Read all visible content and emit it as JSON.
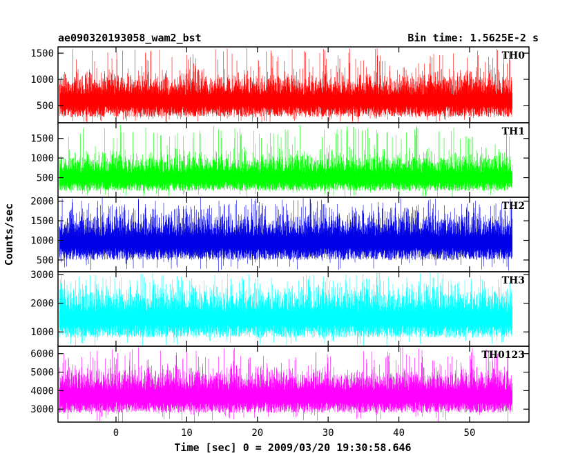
{
  "chart_data": {
    "type": "line",
    "title_left": "ae090320193058_wam2_bst",
    "title_right": "Bin time: 1.5625E-2 s",
    "xlabel": "Time [sec] 0 = 2009/03/20 19:30:58.646",
    "ylabel": "Counts/sec",
    "xlim": [
      -8.2,
      58.4
    ],
    "data_xrange": [
      -8,
      56
    ],
    "x_ticks": [
      0,
      10,
      20,
      30,
      40,
      50
    ],
    "x_tick_labels": [
      "0",
      "10",
      "20",
      "30",
      "40",
      "50"
    ],
    "grid": false,
    "series": [
      {
        "name": "TH0",
        "color": "#ff0000",
        "ylim": [
          170,
          1620
        ],
        "yticks": [
          500,
          1000,
          1500
        ],
        "ytick_labels": [
          "500",
          "1000",
          "1500"
        ],
        "baseline": 280,
        "mean": 700,
        "spread": 230,
        "peak": 1600
      },
      {
        "name": "TH1",
        "color": "#00ff00",
        "ylim": [
          0,
          1900
        ],
        "yticks": [
          500,
          1000,
          1500
        ],
        "ytick_labels": [
          "500",
          "1000",
          "1500"
        ],
        "baseline": 160,
        "mean": 620,
        "spread": 260,
        "peak": 1850
      },
      {
        "name": "TH2",
        "color": "#0000e6",
        "ylim": [
          200,
          2100
        ],
        "yticks": [
          500,
          1000,
          1500,
          2000
        ],
        "ytick_labels": [
          "500",
          "1000",
          "1500",
          "2000"
        ],
        "baseline": 500,
        "mean": 1100,
        "spread": 330,
        "peak": 2080
      },
      {
        "name": "TH3",
        "color": "#00ffff",
        "ylim": [
          500,
          3100
        ],
        "yticks": [
          1000,
          2000,
          3000
        ],
        "ytick_labels": [
          "1000",
          "2000",
          "3000"
        ],
        "baseline": 800,
        "mean": 1700,
        "spread": 450,
        "peak": 3080
      },
      {
        "name": "TH0123",
        "color": "#ff00ff",
        "ylim": [
          2300,
          6400
        ],
        "yticks": [
          3000,
          4000,
          5000,
          6000
        ],
        "ytick_labels": [
          "3000",
          "4000",
          "5000",
          "6000"
        ],
        "baseline": 2800,
        "mean": 4000,
        "spread": 650,
        "peak": 6350
      }
    ]
  }
}
